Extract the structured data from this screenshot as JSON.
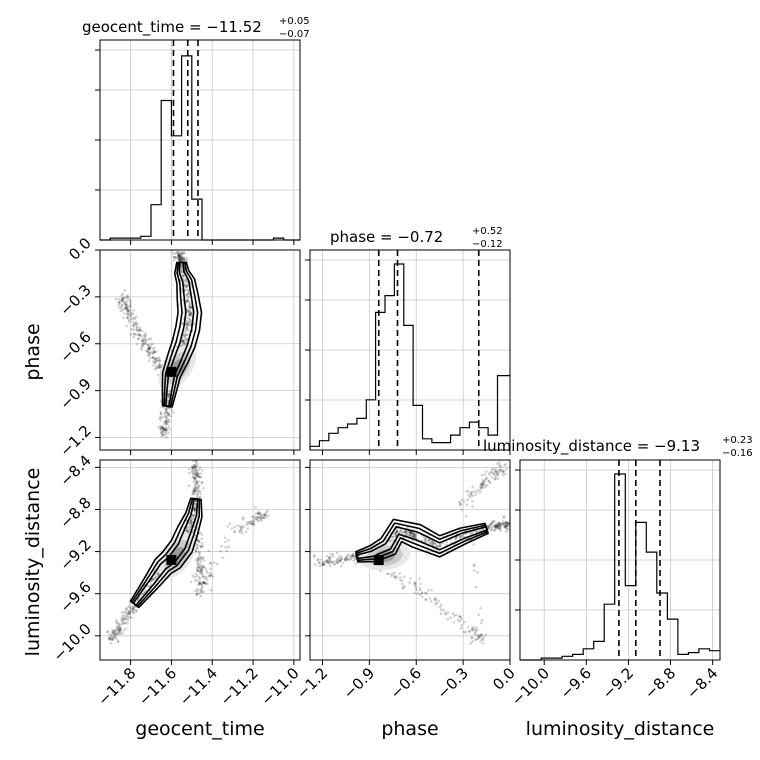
{
  "chart_data": {
    "type": "corner",
    "parameters": [
      "geocent_time",
      "phase",
      "luminosity_distance"
    ],
    "ranges": {
      "geocent_time": [
        -11.95,
        -10.97
      ],
      "phase": [
        -1.28,
        0.0
      ],
      "luminosity_distance": [
        -10.23,
        -8.33
      ]
    },
    "ticks": {
      "geocent_time": [
        -11.8,
        -11.6,
        -11.4,
        -11.2,
        -11.0
      ],
      "phase": [
        -1.2,
        -0.9,
        -0.6,
        -0.3,
        0.0
      ],
      "luminosity_distance": [
        -10.0,
        -9.6,
        -9.2,
        -8.8,
        -8.4
      ]
    },
    "tick_labels": {
      "geocent_time": [
        "−11.8",
        "−11.6",
        "−11.4",
        "−11.2",
        "−11.0"
      ],
      "phase": [
        "−1.2",
        "−0.9",
        "−0.6",
        "−0.3",
        "0.0"
      ],
      "luminosity_distance": [
        "−10.0",
        "−9.6",
        "−9.2",
        "−8.8",
        "−8.4"
      ]
    },
    "axis_labels": {
      "geocent_time": "geocent_time",
      "phase": "phase",
      "luminosity_distance": "luminosity_distance"
    },
    "titles": {
      "geocent_time": {
        "text": "geocent_time = −11.52",
        "up": "+0.05",
        "down": "−0.07"
      },
      "phase": {
        "text": "phase = −0.72",
        "up": "+0.52",
        "down": "−0.12"
      },
      "luminosity_distance": {
        "text": "luminosity_distance = −9.13",
        "up": "+0.23",
        "down": "−0.16"
      }
    },
    "quantiles": {
      "geocent_time": [
        -11.59,
        -11.52,
        -11.47
      ],
      "phase": [
        -0.84,
        -0.72,
        -0.2
      ],
      "luminosity_distance": [
        -9.29,
        -9.13,
        -8.9
      ]
    },
    "histograms": {
      "geocent_time": {
        "edges": [
          -11.95,
          -11.9,
          -11.85,
          -11.8,
          -11.75,
          -11.7,
          -11.65,
          -11.6,
          -11.55,
          -11.5,
          -11.45,
          -11.4,
          -11.35,
          -11.3,
          -11.25,
          -11.2,
          -11.15,
          -11.1,
          -11.05,
          -11.0,
          -10.97
        ],
        "counts": [
          0.0,
          0.01,
          0.01,
          0.01,
          0.02,
          0.19,
          0.75,
          0.56,
          0.99,
          0.22,
          0.0,
          0.0,
          0.0,
          0.0,
          0.0,
          0.0,
          0.0,
          0.01,
          0.0,
          0.0
        ]
      },
      "phase": {
        "edges": [
          -1.28,
          -1.22,
          -1.16,
          -1.1,
          -1.04,
          -0.98,
          -0.92,
          -0.86,
          -0.8,
          -0.74,
          -0.68,
          -0.62,
          -0.56,
          -0.5,
          -0.44,
          -0.38,
          -0.32,
          -0.26,
          -0.2,
          -0.14,
          -0.08,
          -0.02,
          0.0
        ],
        "counts": [
          0.02,
          0.05,
          0.09,
          0.12,
          0.14,
          0.17,
          0.27,
          0.74,
          0.83,
          1.0,
          0.67,
          0.24,
          0.06,
          0.04,
          0.04,
          0.08,
          0.12,
          0.15,
          0.12,
          0.08,
          0.4,
          0.4
        ]
      },
      "luminosity_distance": {
        "edges": [
          -10.23,
          -10.13,
          -10.03,
          -9.93,
          -9.83,
          -9.73,
          -9.63,
          -9.53,
          -9.43,
          -9.33,
          -9.23,
          -9.13,
          -9.03,
          -8.93,
          -8.83,
          -8.73,
          -8.63,
          -8.53,
          -8.43,
          -8.33
        ],
        "counts": [
          0.0,
          0.0,
          0.01,
          0.01,
          0.02,
          0.03,
          0.06,
          0.1,
          0.3,
          1.0,
          0.4,
          0.74,
          0.58,
          0.36,
          0.22,
          0.03,
          0.04,
          0.06,
          0.05
        ]
      }
    },
    "pair_scatter": [
      {
        "x_param": "geocent_time",
        "y_param": "phase",
        "mode": {
          "x": -11.6,
          "y": -0.78
        },
        "ridge": [
          [
            -11.57,
            0.0
          ],
          [
            -11.56,
            -0.04
          ],
          [
            -11.55,
            -0.08
          ],
          [
            -11.55,
            -0.14
          ],
          [
            -11.53,
            -0.2
          ],
          [
            -11.52,
            -0.3
          ],
          [
            -11.51,
            -0.4
          ],
          [
            -11.52,
            -0.5
          ],
          [
            -11.54,
            -0.6
          ],
          [
            -11.57,
            -0.7
          ],
          [
            -11.6,
            -0.8
          ],
          [
            -11.61,
            -0.9
          ],
          [
            -11.62,
            -1.0
          ],
          [
            -11.63,
            -1.1
          ],
          [
            -11.64,
            -1.18
          ]
        ],
        "tail": [
          [
            -11.84,
            -0.3
          ],
          [
            -11.8,
            -0.42
          ],
          [
            -11.74,
            -0.58
          ],
          [
            -11.68,
            -0.7
          ],
          [
            -11.62,
            -0.8
          ]
        ]
      },
      {
        "x_param": "geocent_time",
        "y_param": "luminosity_distance",
        "mode": {
          "x": -11.6,
          "y": -9.28
        },
        "ridge": [
          [
            -11.9,
            -10.05
          ],
          [
            -11.85,
            -9.9
          ],
          [
            -11.78,
            -9.7
          ],
          [
            -11.7,
            -9.5
          ],
          [
            -11.64,
            -9.34
          ],
          [
            -11.6,
            -9.28
          ],
          [
            -11.55,
            -9.15
          ],
          [
            -11.52,
            -9.0
          ],
          [
            -11.49,
            -8.85
          ],
          [
            -11.48,
            -8.7
          ],
          [
            -11.48,
            -8.5
          ],
          [
            -11.48,
            -8.35
          ]
        ],
        "tail": [
          [
            -11.48,
            -9.0
          ],
          [
            -11.47,
            -9.2
          ],
          [
            -11.46,
            -9.4
          ],
          [
            -11.46,
            -9.6
          ],
          [
            -11.3,
            -9.0
          ],
          [
            -11.2,
            -8.9
          ],
          [
            -11.15,
            -8.85
          ]
        ]
      },
      {
        "x_param": "phase",
        "y_param": "luminosity_distance",
        "mode": {
          "x": -0.84,
          "y": -9.28
        },
        "ridge": [
          [
            -1.24,
            -9.3
          ],
          [
            -1.1,
            -9.28
          ],
          [
            -0.98,
            -9.25
          ],
          [
            -0.88,
            -9.22
          ],
          [
            -0.78,
            -9.15
          ],
          [
            -0.72,
            -9.0
          ],
          [
            -0.6,
            -9.05
          ],
          [
            -0.45,
            -9.15
          ],
          [
            -0.3,
            -9.05
          ],
          [
            -0.15,
            -8.98
          ],
          [
            -0.05,
            -8.95
          ],
          [
            0.0,
            -8.92
          ]
        ],
        "tail": [
          [
            -0.8,
            -9.35
          ],
          [
            -0.65,
            -9.5
          ],
          [
            -0.5,
            -9.65
          ],
          [
            -0.38,
            -9.8
          ],
          [
            -0.25,
            -9.95
          ],
          [
            -0.15,
            -10.05
          ],
          [
            -0.3,
            -8.75
          ],
          [
            -0.2,
            -8.6
          ],
          [
            -0.1,
            -8.45
          ],
          [
            -0.03,
            -8.38
          ]
        ]
      }
    ],
    "grid": true
  }
}
